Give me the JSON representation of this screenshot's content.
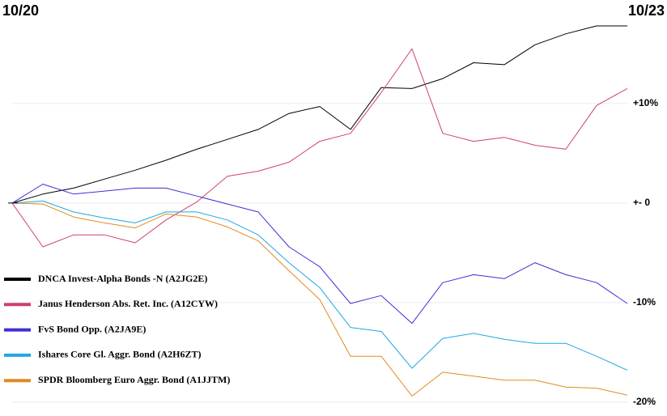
{
  "chart_data": {
    "type": "line",
    "categories": [
      "10/20",
      null,
      null,
      null,
      null,
      null,
      null,
      null,
      null,
      null,
      null,
      null,
      null,
      null,
      null,
      null,
      null,
      null,
      null,
      null,
      "10/23"
    ],
    "ylim": [
      -21.4,
      20.4
    ],
    "yticks": [
      {
        "value": 10,
        "label": "+10%"
      },
      {
        "value": 0,
        "label": "+- 0"
      },
      {
        "value": -10,
        "label": "-10%"
      },
      {
        "value": -20,
        "label": "-20%"
      }
    ],
    "grid": true,
    "legend": "left",
    "series": [
      {
        "name": "DNCA Invest-Alpha Bonds -N (A2JG2E)",
        "color": "#000000",
        "values": [
          0,
          0.9,
          1.5,
          2.4,
          3.3,
          4.3,
          5.4,
          6.4,
          7.4,
          9.0,
          9.7,
          7.4,
          11.6,
          11.5,
          12.5,
          14.1,
          13.9,
          15.9,
          17.0,
          17.8,
          17.8
        ]
      },
      {
        "name": "Janus Henderson Abs. Ret. Inc. (A12CYW)",
        "color": "#d0406e",
        "values": [
          0,
          -4.4,
          -3.2,
          -3.2,
          -4.0,
          -1.7,
          0.1,
          2.7,
          3.2,
          4.1,
          6.2,
          7.0,
          11.1,
          15.5,
          7.0,
          6.2,
          6.6,
          5.8,
          5.4,
          9.8,
          11.5
        ]
      },
      {
        "name": "FvS Bond Opp. (A2JA9E)",
        "color": "#3c2fd8",
        "values": [
          0,
          1.9,
          0.9,
          1.2,
          1.5,
          1.5,
          0.7,
          -0.1,
          -0.9,
          -4.4,
          -6.4,
          -10.1,
          -9.3,
          -12.1,
          -8.0,
          -7.2,
          -7.6,
          -6.0,
          -7.2,
          -8.0,
          -10.1
        ]
      },
      {
        "name": "Ishares Core Gl. Aggr. Bond (A2H6ZT)",
        "color": "#1fa8e0",
        "values": [
          0,
          0.2,
          -0.9,
          -1.5,
          -2.0,
          -0.9,
          -0.9,
          -1.7,
          -3.2,
          -6.0,
          -8.5,
          -12.5,
          -12.9,
          -16.6,
          -13.6,
          -13.1,
          -13.7,
          -14.1,
          -14.1,
          -15.4,
          -16.8
        ]
      },
      {
        "name": "SPDR Bloomberg Euro Aggr. Bond  (A1JJTM)",
        "color": "#e08a20",
        "values": [
          0,
          -0.1,
          -1.4,
          -2.0,
          -2.5,
          -1.1,
          -1.4,
          -2.4,
          -3.8,
          -6.8,
          -9.7,
          -15.4,
          -15.4,
          -19.4,
          -17.0,
          -17.4,
          -17.8,
          -17.8,
          -18.5,
          -18.6,
          -19.3
        ]
      }
    ]
  }
}
